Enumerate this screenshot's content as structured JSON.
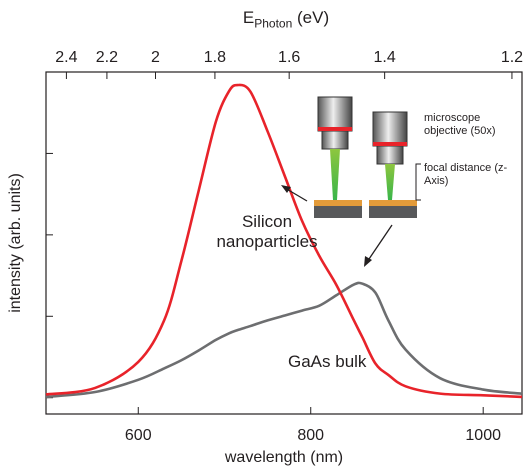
{
  "chart_data": {
    "type": "line",
    "xlabel": "wavelength (nm)",
    "ylabel": "intensity (arb. units)",
    "x2label_symbol": "E",
    "x2label_subscript": "Photon",
    "x2label_unit": "(eV)",
    "x": [
      493,
      550,
      600,
      630,
      650,
      670,
      690,
      705,
      715,
      730,
      750,
      770,
      790,
      810,
      830,
      850,
      860,
      875,
      890,
      910,
      950,
      1000,
      1045
    ],
    "series": [
      {
        "name": "Silicon nanoparticles",
        "color": "#e8232a",
        "values": [
          0.04,
          0.12,
          0.44,
          0.95,
          1.68,
          2.54,
          3.39,
          3.76,
          3.84,
          3.76,
          3.27,
          2.72,
          2.17,
          1.74,
          1.38,
          0.95,
          0.74,
          0.42,
          0.28,
          0.14,
          0.05,
          0.03,
          0.01
        ]
      },
      {
        "name": "GaAs bulk",
        "color": "#6d6e70",
        "values": [
          0.01,
          0.07,
          0.22,
          0.36,
          0.46,
          0.58,
          0.71,
          0.79,
          0.83,
          0.88,
          0.95,
          1.01,
          1.07,
          1.13,
          1.26,
          1.39,
          1.4,
          1.29,
          0.95,
          0.59,
          0.24,
          0.1,
          0.05
        ]
      }
    ],
    "xlim": [
      493,
      1045
    ],
    "xticks": [
      600,
      800,
      1000
    ],
    "x2ticks": [
      2.4,
      2.2,
      2,
      1.8,
      1.6,
      1.4,
      1.2
    ],
    "ylim": [
      -0.2,
      4
    ],
    "yticks": [
      0,
      1,
      2,
      3,
      4
    ],
    "annotations": [
      "microscope objective (50x)",
      "focal distance (z-Axis)"
    ]
  }
}
